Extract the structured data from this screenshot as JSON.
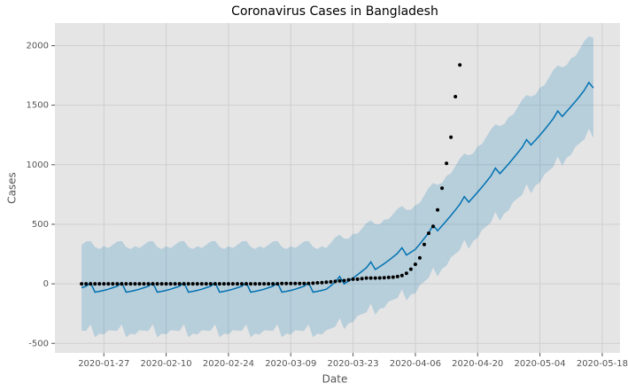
{
  "chart_data": {
    "type": "forecast",
    "title": "Coronavirus Cases in Bangladesh",
    "xlabel": "Date",
    "ylabel": "Cases",
    "grid": true,
    "xlim": [
      "2020-01-16",
      "2020-05-22"
    ],
    "ylim": [
      -580,
      2190
    ],
    "xticks": [
      "2020-01-27",
      "2020-02-10",
      "2020-02-24",
      "2020-03-09",
      "2020-03-23",
      "2020-04-06",
      "2020-04-20",
      "2020-05-04",
      "2020-05-18"
    ],
    "yticks": [
      -500,
      0,
      500,
      1000,
      1500,
      2000
    ],
    "x": [
      "2020-01-22",
      "2020-01-23",
      "2020-01-24",
      "2020-01-25",
      "2020-01-26",
      "2020-01-27",
      "2020-01-28",
      "2020-01-29",
      "2020-01-30",
      "2020-01-31",
      "2020-02-01",
      "2020-02-02",
      "2020-02-03",
      "2020-02-04",
      "2020-02-05",
      "2020-02-06",
      "2020-02-07",
      "2020-02-08",
      "2020-02-09",
      "2020-02-10",
      "2020-02-11",
      "2020-02-12",
      "2020-02-13",
      "2020-02-14",
      "2020-02-15",
      "2020-02-16",
      "2020-02-17",
      "2020-02-18",
      "2020-02-19",
      "2020-02-20",
      "2020-02-21",
      "2020-02-22",
      "2020-02-23",
      "2020-02-24",
      "2020-02-25",
      "2020-02-26",
      "2020-02-27",
      "2020-02-28",
      "2020-02-29",
      "2020-03-01",
      "2020-03-02",
      "2020-03-03",
      "2020-03-04",
      "2020-03-05",
      "2020-03-06",
      "2020-03-07",
      "2020-03-08",
      "2020-03-09",
      "2020-03-10",
      "2020-03-11",
      "2020-03-12",
      "2020-03-13",
      "2020-03-14",
      "2020-03-15",
      "2020-03-16",
      "2020-03-17",
      "2020-03-18",
      "2020-03-19",
      "2020-03-20",
      "2020-03-21",
      "2020-03-22",
      "2020-03-23",
      "2020-03-24",
      "2020-03-25",
      "2020-03-26",
      "2020-03-27",
      "2020-03-28",
      "2020-03-29",
      "2020-03-30",
      "2020-03-31",
      "2020-04-01",
      "2020-04-02",
      "2020-04-03",
      "2020-04-04",
      "2020-04-05",
      "2020-04-06",
      "2020-04-07",
      "2020-04-08",
      "2020-04-09",
      "2020-04-10",
      "2020-04-11",
      "2020-04-12",
      "2020-04-13",
      "2020-04-14",
      "2020-04-15",
      "2020-04-16",
      "2020-04-17",
      "2020-04-18",
      "2020-04-19",
      "2020-04-20",
      "2020-04-21",
      "2020-04-22",
      "2020-04-23",
      "2020-04-24",
      "2020-04-25",
      "2020-04-26",
      "2020-04-27",
      "2020-04-28",
      "2020-04-29",
      "2020-04-30",
      "2020-05-01",
      "2020-05-02",
      "2020-05-03",
      "2020-05-04",
      "2020-05-05",
      "2020-05-06",
      "2020-05-07",
      "2020-05-08",
      "2020-05-09",
      "2020-05-10",
      "2020-05-11",
      "2020-05-12",
      "2020-05-13",
      "2020-05-14",
      "2020-05-15",
      "2020-05-16"
    ],
    "series": [
      {
        "type": "band",
        "color": "#0072B2",
        "opacity": 0.2,
        "upper": [
          327,
          355,
          360,
          310,
          292,
          315,
          300,
          327,
          355,
          360,
          310,
          292,
          315,
          300,
          327,
          355,
          360,
          310,
          292,
          315,
          300,
          327,
          355,
          360,
          310,
          292,
          315,
          300,
          327,
          355,
          360,
          310,
          292,
          315,
          300,
          327,
          355,
          360,
          310,
          292,
          315,
          300,
          327,
          355,
          360,
          310,
          292,
          315,
          300,
          327,
          355,
          360,
          310,
          292,
          315,
          300,
          344,
          390,
          412,
          379,
          378,
          419,
          421,
          465,
          510,
          533,
          500,
          499,
          539,
          542,
          586,
          631,
          653,
          621,
          620,
          660,
          680,
          743,
          806,
          846,
          831,
          849,
          907,
          927,
          989,
          1053,
          1093,
          1078,
          1095,
          1154,
          1174,
          1236,
          1299,
          1340,
          1325,
          1342,
          1400,
          1421,
          1483,
          1546,
          1586,
          1572,
          1589,
          1647,
          1667,
          1730,
          1793,
          1833,
          1818,
          1836,
          1894,
          1914,
          1976,
          2040,
          2080,
          2065
        ],
        "lower": [
          -393,
          -395,
          -340,
          -450,
          -418,
          -425,
          -390,
          -393,
          -395,
          -340,
          -450,
          -418,
          -425,
          -390,
          -393,
          -395,
          -340,
          -450,
          -418,
          -425,
          -390,
          -393,
          -395,
          -340,
          -450,
          -418,
          -425,
          -390,
          -393,
          -395,
          -340,
          -450,
          -418,
          -425,
          -390,
          -393,
          -395,
          -340,
          -450,
          -418,
          -425,
          -390,
          -393,
          -395,
          -340,
          -450,
          -418,
          -425,
          -390,
          -393,
          -395,
          -340,
          -450,
          -418,
          -425,
          -390,
          -376,
          -360,
          -288,
          -381,
          -332,
          -321,
          -269,
          -255,
          -240,
          -167,
          -260,
          -211,
          -201,
          -148,
          -134,
          -119,
          -47,
          -139,
          -90,
          -80,
          -12,
          19,
          50,
          138,
          61,
          127,
          153,
          221,
          251,
          283,
          371,
          294,
          359,
          386,
          454,
          484,
          515,
          604,
          527,
          592,
          618,
          687,
          717,
          748,
          836,
          760,
          825,
          851,
          919,
          950,
          981,
          1069,
          992,
          1058,
          1084,
          1152,
          1182,
          1214,
          1302,
          1225
        ]
      },
      {
        "type": "line",
        "color": "#0072B2",
        "values": [
          -33,
          -20,
          10,
          -70,
          -63,
          -55,
          -45,
          -33,
          -20,
          10,
          -70,
          -63,
          -55,
          -45,
          -33,
          -20,
          10,
          -70,
          -63,
          -55,
          -45,
          -33,
          -20,
          10,
          -70,
          -63,
          -55,
          -45,
          -33,
          -20,
          10,
          -70,
          -63,
          -55,
          -45,
          -33,
          -20,
          10,
          -70,
          -63,
          -55,
          -45,
          -33,
          -20,
          10,
          -70,
          -63,
          -55,
          -45,
          -33,
          -20,
          10,
          -70,
          -63,
          -55,
          -45,
          -16,
          15,
          62,
          -1,
          23,
          49,
          76,
          105,
          135,
          183,
          120,
          144,
          169,
          197,
          226,
          256,
          303,
          241,
          265,
          290,
          334,
          381,
          428,
          492,
          446,
          488,
          530,
          574,
          620,
          668,
          732,
          686,
          727,
          770,
          814,
          860,
          907,
          972,
          926,
          967,
          1009,
          1054,
          1100,
          1147,
          1211,
          1166,
          1207,
          1249,
          1293,
          1340,
          1387,
          1451,
          1405,
          1447,
          1489,
          1533,
          1579,
          1627,
          1691,
          1645
        ]
      },
      {
        "type": "scatter",
        "color": "#000000",
        "values": [
          0,
          0,
          0,
          0,
          0,
          0,
          0,
          0,
          0,
          0,
          0,
          0,
          0,
          0,
          0,
          0,
          0,
          0,
          0,
          0,
          0,
          0,
          0,
          0,
          0,
          0,
          0,
          0,
          0,
          0,
          0,
          0,
          0,
          0,
          0,
          0,
          0,
          0,
          0,
          0,
          0,
          0,
          0,
          0,
          0,
          3,
          3,
          3,
          3,
          3,
          3,
          3,
          5,
          8,
          10,
          14,
          17,
          20,
          24,
          27,
          33,
          39,
          39,
          44,
          48,
          48,
          48,
          49,
          51,
          54,
          56,
          61,
          70,
          88,
          123,
          164,
          218,
          330,
          424,
          482,
          621,
          803,
          1012,
          1231,
          1572,
          1838,
          null,
          null,
          null,
          null,
          null,
          null,
          null,
          null,
          null,
          null,
          null,
          null,
          null,
          null,
          null,
          null,
          null,
          null,
          null,
          null,
          null,
          null,
          null,
          null,
          null,
          null,
          null,
          null,
          null,
          null
        ]
      }
    ]
  }
}
